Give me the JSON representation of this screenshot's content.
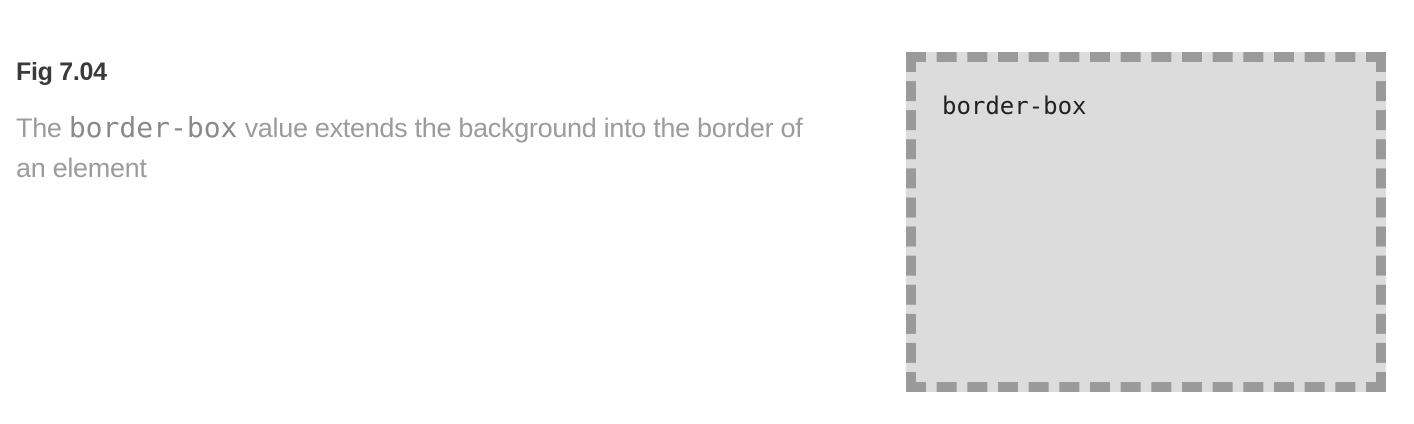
{
  "figure": {
    "title": "Fig 7.04",
    "description_before": "The ",
    "description_code": "border-box",
    "description_after": " value extends the background into the border of an element"
  },
  "demo": {
    "label": "border-box",
    "background_color": "#dcdcdc",
    "border_color": "#9a9a9a",
    "border_style": "dashed"
  }
}
